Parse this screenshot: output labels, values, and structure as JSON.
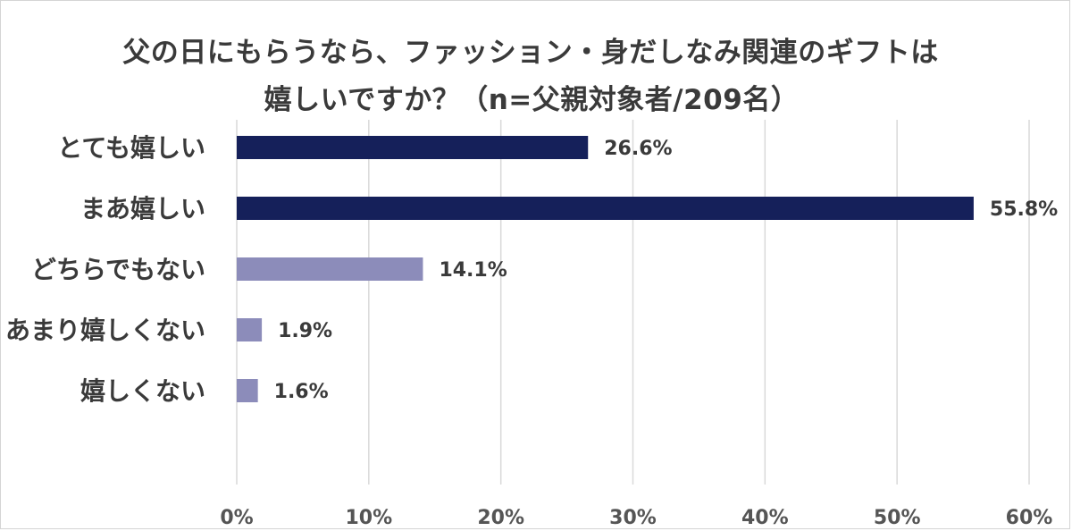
{
  "chart_data": {
    "type": "bar",
    "orientation": "horizontal",
    "title_lines": [
      "父の日にもらうなら、ファッション・身だしなみ関連のギフトは",
      "嬉しいですか？（n=父親対象者/209名）"
    ],
    "categories": [
      "とても嬉しい",
      "まあ嬉しい",
      "どちらでもない",
      "あまり嬉しくない",
      "嬉しくない"
    ],
    "values": [
      26.6,
      55.8,
      14.1,
      1.9,
      1.6
    ],
    "value_labels": [
      "26.6%",
      "55.8%",
      "14.1%",
      "1.9%",
      "1.6%"
    ],
    "bar_colors": [
      "#15205a",
      "#15205a",
      "#8c8cba",
      "#8c8cba",
      "#8c8cba"
    ],
    "xlim": [
      0,
      60
    ],
    "xticks": [
      0,
      10,
      20,
      30,
      40,
      50,
      60
    ],
    "xtick_labels": [
      "0%",
      "10%",
      "20%",
      "30%",
      "40%",
      "50%",
      "60%"
    ],
    "grid": true,
    "grid_color": "#d9d9d9",
    "legend": false
  }
}
